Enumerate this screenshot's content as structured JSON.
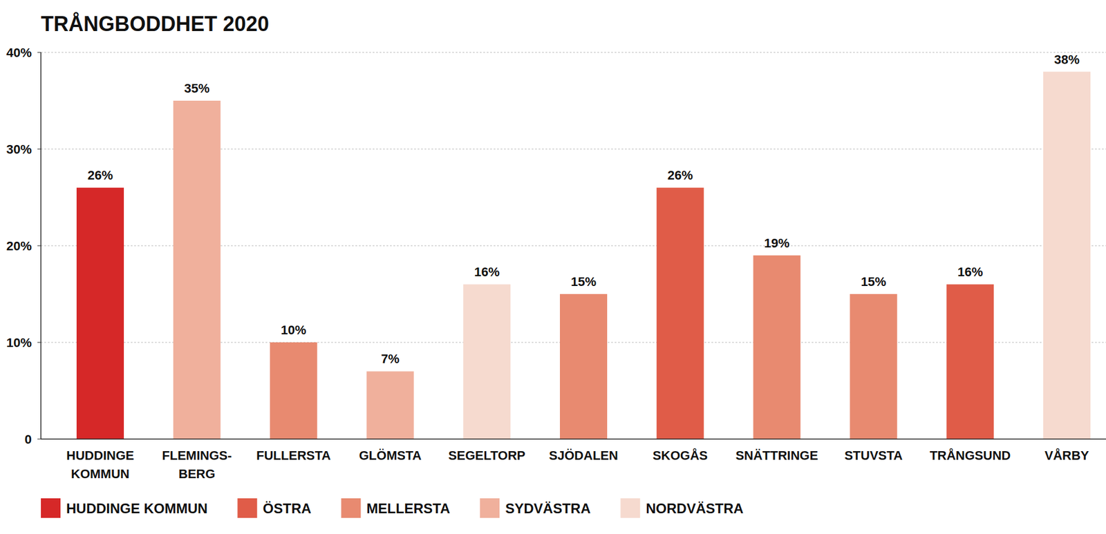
{
  "chart_data": {
    "type": "bar",
    "title": "TRÅNGBODDHET 2020",
    "categories": [
      "HUDDINGE\nKOMMUN",
      "FLEMINGS-\nBERG",
      "FULLERSTA",
      "GLÖMSTA",
      "SEGELTORP",
      "SJÖDALEN",
      "SKOGÅS",
      "SNÄTTRINGE",
      "STUVSTA",
      "TRÅNGSUND",
      "VÅRBY"
    ],
    "series": [
      {
        "name": "HUDDINGE KOMMUN",
        "color": "#d62828",
        "values": [
          26,
          null,
          null,
          null,
          null,
          null,
          null,
          null,
          null,
          null,
          null
        ],
        "value_labels": [
          "26%",
          null,
          null,
          null,
          null,
          null,
          null,
          null,
          null,
          null,
          null
        ]
      },
      {
        "name": "ÖSTRA",
        "color": "#e05c48",
        "values": [
          null,
          null,
          null,
          null,
          null,
          null,
          26,
          null,
          null,
          16,
          null
        ],
        "value_labels": [
          null,
          null,
          null,
          null,
          null,
          null,
          "26%",
          null,
          null,
          "16%",
          null
        ]
      },
      {
        "name": "MELLERSTA",
        "color": "#e88a70",
        "values": [
          null,
          null,
          10,
          null,
          null,
          15,
          null,
          19,
          15,
          null,
          null
        ],
        "value_labels": [
          null,
          null,
          "10%",
          null,
          null,
          "15%",
          null,
          "19%",
          "15%",
          null,
          null
        ]
      },
      {
        "name": "SYDVÄSTRA",
        "color": "#f0b09c",
        "values": [
          null,
          35,
          null,
          7,
          null,
          null,
          null,
          null,
          null,
          null,
          null
        ],
        "value_labels": [
          null,
          "35%",
          null,
          "7%",
          null,
          null,
          null,
          null,
          null,
          null,
          null
        ]
      },
      {
        "name": "NORDVÄSTRA",
        "color": "#f6dacf",
        "values": [
          null,
          null,
          null,
          null,
          16,
          null,
          null,
          null,
          null,
          null,
          38
        ],
        "value_labels": [
          null,
          null,
          null,
          null,
          "16%",
          null,
          null,
          null,
          null,
          null,
          "38%"
        ]
      }
    ],
    "ylim": [
      0,
      40
    ],
    "yticks": [
      0,
      {
        "value": 10,
        "label": "10%"
      },
      {
        "value": 20,
        "label": "20%"
      },
      {
        "value": 30,
        "label": "30%"
      },
      {
        "value": 40,
        "label": "40%"
      }
    ],
    "grid": true,
    "data_labels": true,
    "legend": "bottom"
  }
}
